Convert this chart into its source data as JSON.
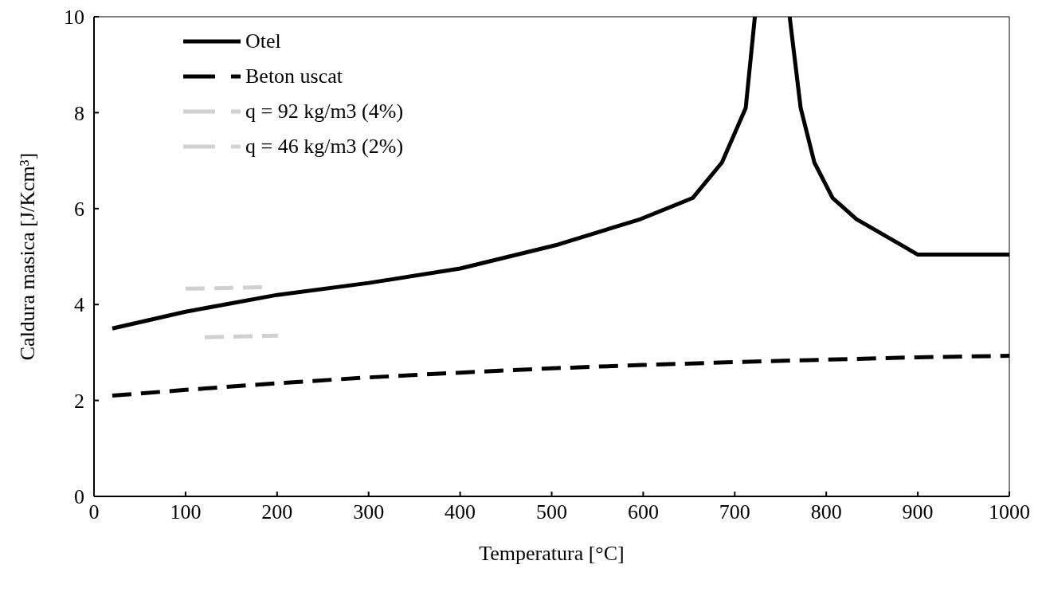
{
  "chart_data": {
    "type": "line",
    "xlabel": "Temperatura [°C]",
    "ylabel": "Caldura masica [J/Kcm³]",
    "xlim": [
      0,
      1000
    ],
    "ylim": [
      0,
      10
    ],
    "xticks": [
      0,
      100,
      200,
      300,
      400,
      500,
      600,
      700,
      800,
      900,
      1000
    ],
    "yticks": [
      0,
      2,
      4,
      6,
      8,
      10
    ],
    "grid": false,
    "legend": "top left",
    "marker": "none",
    "series": [
      {
        "name": "Otel",
        "color": "#000000",
        "line_style": "solid",
        "x": [
          20,
          100,
          200,
          300,
          400,
          507,
          597,
          654,
          686,
          712,
          722,
          741,
          760,
          772,
          787,
          807,
          833,
          881,
          900,
          1000
        ],
        "values": [
          3.5,
          3.85,
          4.2,
          4.45,
          4.75,
          5.25,
          5.78,
          6.22,
          6.96,
          8.1,
          10,
          null,
          10,
          8.1,
          6.96,
          6.22,
          5.78,
          5.25,
          5.04,
          5.04
        ]
      },
      {
        "name": "Beton uscat",
        "color": "#000000",
        "line_style": "dashed",
        "x": [
          20,
          100,
          200,
          300,
          400,
          500,
          600,
          700,
          800,
          900,
          1000
        ],
        "values": [
          2.1,
          2.22,
          2.36,
          2.48,
          2.58,
          2.67,
          2.74,
          2.8,
          2.85,
          2.9,
          2.93
        ]
      },
      {
        "name": "q = 92 kg/m3 (4%)",
        "color": "#d0d0d0",
        "line_style": "dashed",
        "x": [
          100,
          185
        ],
        "values": [
          4.33,
          4.36
        ]
      },
      {
        "name": "q = 46 kg/m3 (2%)",
        "color": "#d0d0d0",
        "line_style": "dashed",
        "x": [
          121,
          201
        ],
        "values": [
          3.32,
          3.35
        ]
      }
    ]
  }
}
